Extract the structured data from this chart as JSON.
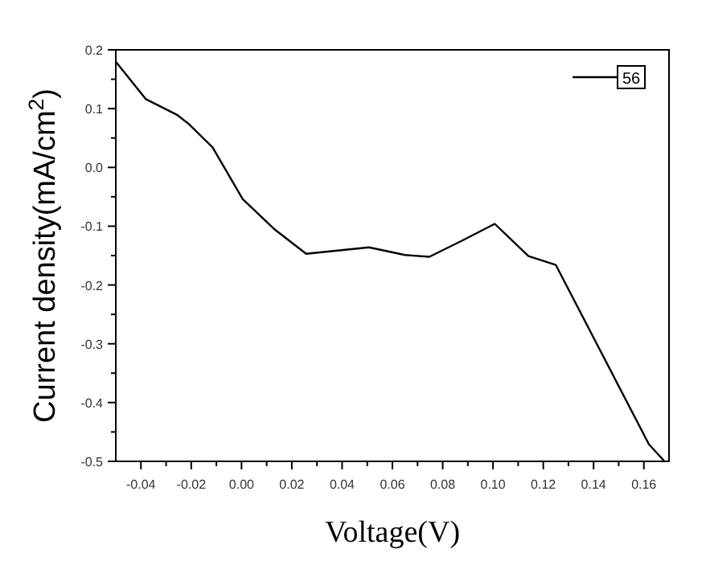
{
  "chart_data": {
    "type": "line",
    "xlabel": "Voltage(V)",
    "ylabel": "Current density(mA/cm$^{2}$)",
    "xlim": [
      -0.05,
      0.17
    ],
    "xticks": [
      {
        "value": -0.04,
        "label": "-0.04"
      },
      {
        "value": -0.02,
        "label": "-0.02"
      },
      {
        "value": 0,
        "label": "0.00"
      },
      {
        "value": 0.02,
        "label": "0.02"
      },
      {
        "value": 0.04,
        "label": "0.04"
      },
      {
        "value": 0.06,
        "label": "0.06"
      },
      {
        "value": 0.08,
        "label": "0.08"
      },
      {
        "value": 0.1,
        "label": "0.10"
      },
      {
        "value": 0.12,
        "label": "0.12"
      },
      {
        "value": 0.14,
        "label": "0.14"
      },
      {
        "value": 0.16,
        "label": "0.16"
      }
    ],
    "ylim": [
      -0.5,
      0.2
    ],
    "yticks": [
      {
        "value": -0.5,
        "label": "-0.5"
      },
      {
        "value": -0.4,
        "label": "-0.4"
      },
      {
        "value": -0.3,
        "label": "-0.3"
      },
      {
        "value": -0.2,
        "label": "-0.2"
      },
      {
        "value": -0.1,
        "label": "-0.1"
      },
      {
        "value": 0,
        "label": "0.0"
      },
      {
        "value": 0.1,
        "label": "0.1"
      },
      {
        "value": 0.2,
        "label": "0.2"
      }
    ],
    "legend": "top right",
    "grid": false,
    "marker": "none",
    "line_style": "solid",
    "series": [
      {
        "name": "56",
        "color": "#000000",
        "x": [
          -0.05,
          -0.038,
          -0.0255,
          -0.021,
          -0.0115,
          0.0005,
          0.0133,
          0.0257,
          0.0507,
          0.065,
          0.0747,
          0.0875,
          0.1007,
          0.1141,
          0.125,
          0.162,
          0.168
        ],
        "values": [
          0.18,
          0.116,
          0.089,
          0.074,
          0.034,
          -0.054,
          -0.106,
          -0.147,
          -0.136,
          -0.149,
          -0.152,
          -0.125,
          -0.096,
          -0.151,
          -0.166,
          -0.471,
          -0.499
        ]
      }
    ]
  }
}
